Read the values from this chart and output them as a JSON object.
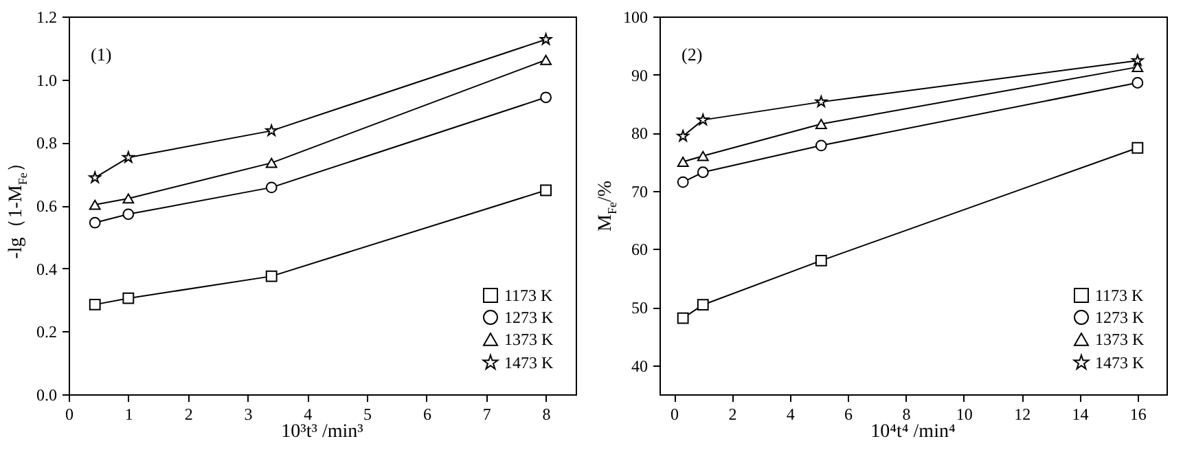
{
  "chart_data": [
    {
      "type": "line",
      "xlabel": "10³t³ /min³",
      "ylabel": "-lg（1-M$_{Fe}$）",
      "annotations": [
        "(1)"
      ],
      "x": [
        0.44,
        1,
        3.4,
        8
      ],
      "xlim": [
        0,
        8.5
      ],
      "xticks": [
        0,
        1,
        2,
        3,
        4,
        5,
        6,
        7,
        8
      ],
      "ylim": [
        0,
        1.2
      ],
      "yticks": [
        {
          "value": 0,
          "label": "0.0"
        },
        0.2,
        0.4,
        0.6,
        0.8,
        {
          "value": 1,
          "label": "1.0"
        },
        1.2
      ],
      "grid": false,
      "legend": "bottom right",
      "line_style": "solid",
      "series": [
        {
          "name": "1173 K",
          "color": "#000000",
          "marker": "square",
          "values": [
            0.285,
            0.305,
            0.375,
            0.648
          ]
        },
        {
          "name": "1273 K",
          "color": "#000000",
          "marker": "circle",
          "values": [
            0.545,
            0.572,
            0.657,
            0.943
          ]
        },
        {
          "name": "1373 K",
          "color": "#000000",
          "marker": "triangle",
          "values": [
            0.602,
            0.622,
            0.735,
            1.062
          ]
        },
        {
          "name": "1473 K",
          "color": "#000000",
          "marker": "star",
          "values": [
            0.688,
            0.752,
            0.837,
            1.127
          ]
        }
      ]
    },
    {
      "type": "line",
      "xlabel": "10⁴t⁴ /min⁴",
      "ylabel": "M$_{Fe}$/%",
      "annotations": [
        "(2)"
      ],
      "x": [
        0.31,
        1,
        5.08,
        16
      ],
      "xlim": [
        -0.5,
        17
      ],
      "xticks": [
        0,
        2,
        4,
        6,
        8,
        10,
        12,
        14,
        16
      ],
      "ylim": [
        35,
        100
      ],
      "yticks": [
        40,
        50,
        60,
        70,
        80,
        90,
        100
      ],
      "grid": false,
      "legend": "bottom right",
      "line_style": "solid",
      "series": [
        {
          "name": "1173 K",
          "color": "#000000",
          "marker": "square",
          "values": [
            48.1,
            50.4,
            58.0,
            77.4
          ]
        },
        {
          "name": "1273 K",
          "color": "#000000",
          "marker": "circle",
          "values": [
            71.5,
            73.2,
            77.8,
            88.6
          ]
        },
        {
          "name": "1373 K",
          "color": "#000000",
          "marker": "triangle",
          "values": [
            75.0,
            76.0,
            81.5,
            91.3
          ]
        },
        {
          "name": "1473 K",
          "color": "#000000",
          "marker": "star",
          "values": [
            79.4,
            82.2,
            85.3,
            92.4
          ]
        }
      ]
    }
  ]
}
